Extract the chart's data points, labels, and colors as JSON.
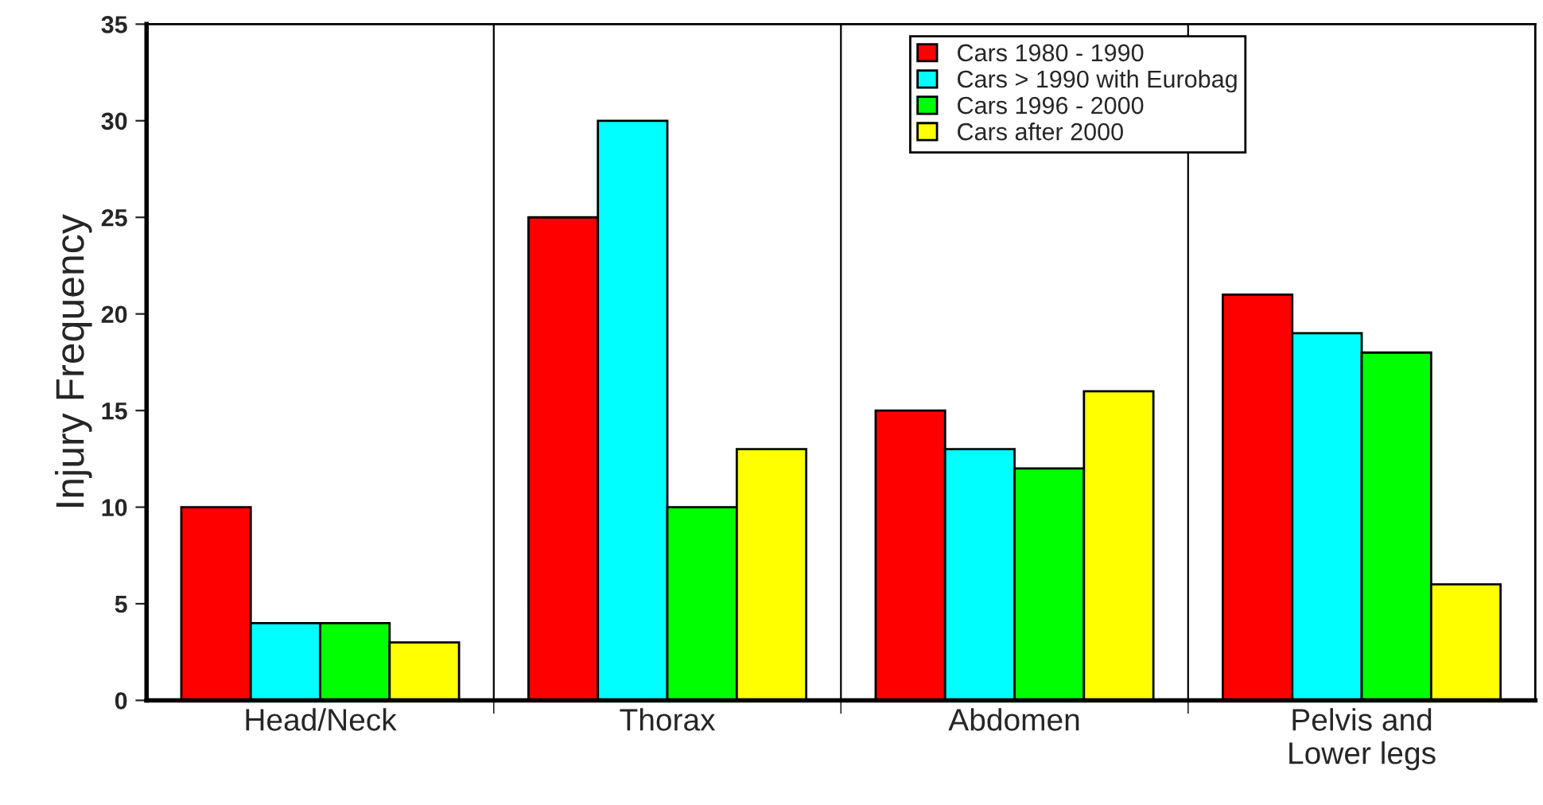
{
  "chart_data": {
    "type": "bar",
    "ylabel": "Injury Frequency",
    "categories": [
      "Head/Neck",
      "Thorax",
      "Abdomen",
      "Pelvis and\nLower legs"
    ],
    "series": [
      {
        "name": "Cars 1980 - 1990",
        "color": "#ff0000",
        "values": [
          10,
          25,
          15,
          21
        ]
      },
      {
        "name": "Cars > 1990 with Eurobag",
        "color": "#00ffff",
        "values": [
          4,
          30,
          13,
          19
        ]
      },
      {
        "name": "Cars 1996 - 2000",
        "color": "#00ff00",
        "values": [
          4,
          10,
          12,
          18
        ]
      },
      {
        "name": "Cars after 2000",
        "color": "#ffff00",
        "values": [
          3,
          13,
          16,
          6
        ]
      }
    ],
    "ylim": [
      0,
      35
    ],
    "yticks": [
      0,
      5,
      10,
      15,
      20,
      25,
      30,
      35
    ],
    "grid": "x",
    "legend": "top right"
  }
}
